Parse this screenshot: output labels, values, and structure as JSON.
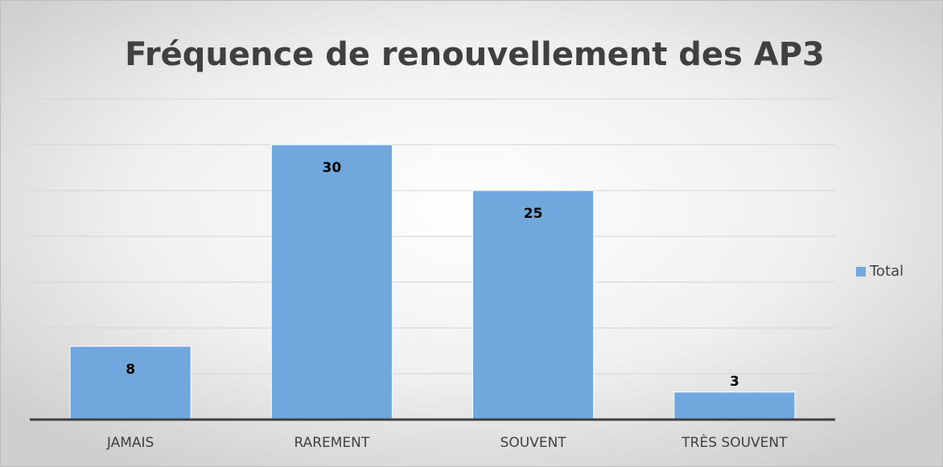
{
  "chart_data": {
    "type": "bar",
    "title": "Fréquence de renouvellement des AP3",
    "categories": [
      "JAMAIS",
      "RAREMENT",
      "SOUVENT",
      "TRÈS SOUVENT"
    ],
    "series": [
      {
        "name": "Total",
        "color": "#70a7dc",
        "values": [
          8,
          30,
          25,
          3
        ]
      }
    ],
    "ylim": [
      0,
      35
    ],
    "yticks": [
      0,
      5,
      10,
      15,
      20,
      25,
      30,
      35
    ],
    "grid": true,
    "legend": "right"
  }
}
